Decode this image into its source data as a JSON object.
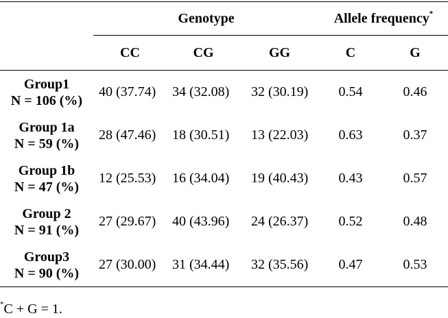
{
  "header": {
    "genotype_label": "Genotype",
    "allele_label": "Allele frequency",
    "allele_marker": "*",
    "columns": [
      "CC",
      "CG",
      "GG",
      "C",
      "G"
    ]
  },
  "rows": [
    {
      "name": "Group1",
      "n": "N = 106 (%)",
      "cc": "40 (37.74)",
      "cg": "34 (32.08)",
      "gg": "32 (30.19)",
      "c": "0.54",
      "g": "0.46"
    },
    {
      "name": "Group 1a",
      "n": "N = 59 (%)",
      "cc": "28 (47.46)",
      "cg": "18 (30.51)",
      "gg": "13 (22.03)",
      "c": "0.63",
      "g": "0.37"
    },
    {
      "name": "Group 1b",
      "n": "N = 47 (%)",
      "cc": "12 (25.53)",
      "cg": "16 (34.04)",
      "gg": "19 (40.43)",
      "c": "0.43",
      "g": "0.57"
    },
    {
      "name": "Group 2",
      "n": "N = 91 (%)",
      "cc": "27 (29.67)",
      "cg": "40 (43.96)",
      "gg": "24 (26.37)",
      "c": "0.52",
      "g": "0.48"
    },
    {
      "name": "Group3",
      "n": "N = 90 (%)",
      "cc": "27 (30.00)",
      "cg": "31 (34.44)",
      "gg": "32 (35.56)",
      "c": "0.47",
      "g": "0.53"
    }
  ],
  "footnote": {
    "marker": "*",
    "text": "C + G = 1."
  }
}
